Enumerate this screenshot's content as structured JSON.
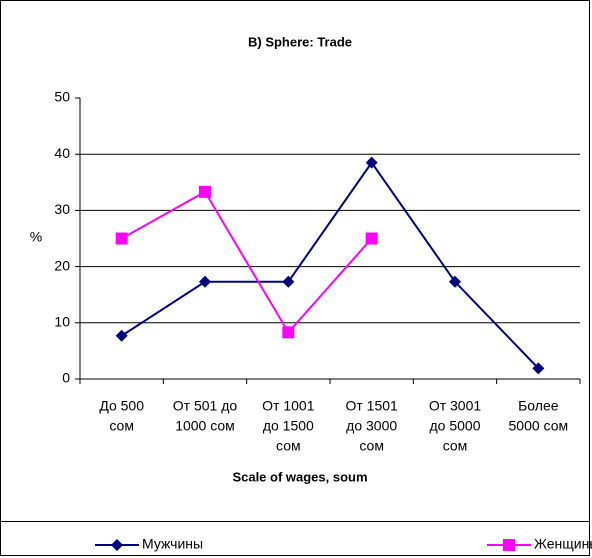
{
  "chart_data": {
    "type": "line",
    "title": "B) Sphere: Trade",
    "x_label": "Scale of wages, soum",
    "y_label": "%",
    "categories": [
      [
        "До 500",
        "сом"
      ],
      [
        "От 501 до",
        "1000 сом"
      ],
      [
        "От 1001",
        "до 1500",
        "сом"
      ],
      [
        "От 1501",
        "до 3000",
        "сом"
      ],
      [
        "От 3001",
        "до 5000",
        "сом"
      ],
      [
        "Более",
        "5000 сом"
      ]
    ],
    "series": [
      {
        "name": "Мужчины",
        "color": "#000080",
        "marker": "diamond",
        "values": [
          7.7,
          17.3,
          17.3,
          38.5,
          17.3,
          1.9
        ]
      },
      {
        "name": "Женщины",
        "color": "#ff00ff",
        "marker": "square",
        "values": [
          25,
          33.3,
          8.3,
          25,
          null,
          null
        ]
      }
    ],
    "ylim": [
      0,
      50
    ],
    "yticks": [
      0,
      10,
      20,
      30,
      40,
      50
    ],
    "grid": true,
    "legend": "bottom"
  }
}
